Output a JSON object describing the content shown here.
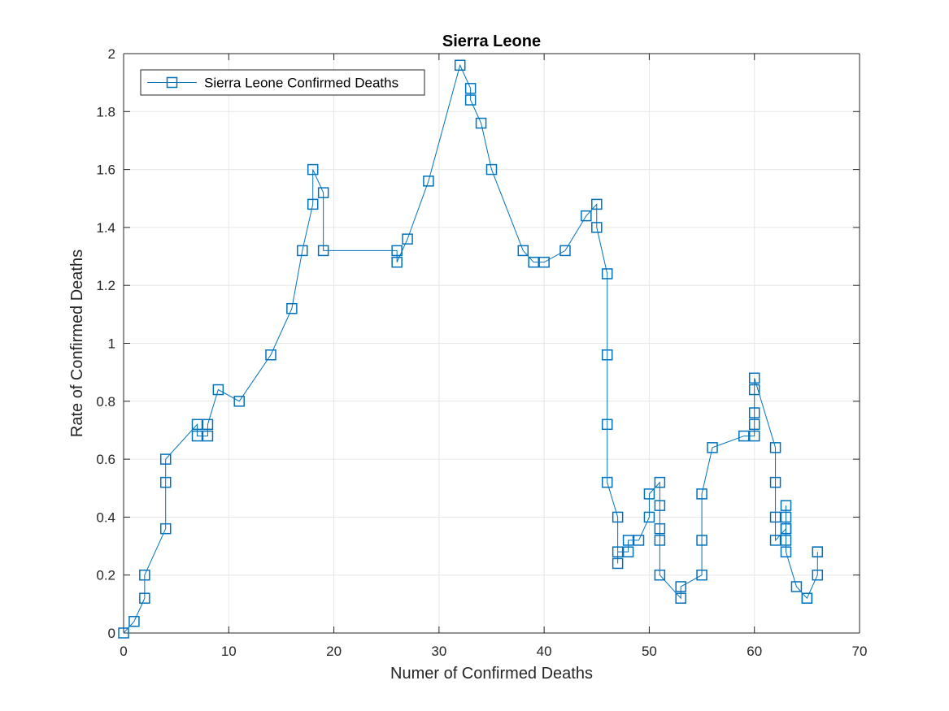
{
  "chart_data": {
    "type": "line",
    "title": "Sierra Leone",
    "xlabel": "Numer of Confirmed Deaths",
    "ylabel": "Rate of Confirmed Deaths",
    "xlim": [
      0,
      70
    ],
    "ylim": [
      0,
      2
    ],
    "xticks": [
      0,
      10,
      20,
      30,
      40,
      50,
      60,
      70
    ],
    "yticks": [
      0,
      0.2,
      0.4,
      0.6,
      0.8,
      1,
      1.2,
      1.4,
      1.6,
      1.8,
      2
    ],
    "xtick_labels": [
      "0",
      "10",
      "20",
      "30",
      "40",
      "50",
      "60",
      "70"
    ],
    "ytick_labels": [
      "0",
      "0.2",
      "0.4",
      "0.6",
      "0.8",
      "1",
      "1.2",
      "1.4",
      "1.6",
      "1.8",
      "2"
    ],
    "grid": true,
    "legend": {
      "position": "top-left",
      "entries": [
        "Sierra Leone Confirmed Deaths"
      ]
    },
    "colors": {
      "series": "#0072BD",
      "grid": "#e6e6e6",
      "axis": "#262626"
    },
    "series": [
      {
        "name": "Sierra Leone Confirmed Deaths",
        "marker": "square",
        "x": [
          0,
          1,
          2,
          2,
          4,
          4,
          4,
          7,
          7,
          8,
          8,
          9,
          11,
          14,
          16,
          17,
          18,
          18,
          19,
          19,
          26,
          26,
          27,
          29,
          32,
          33,
          33,
          34,
          35,
          38,
          39,
          40,
          42,
          44,
          45,
          45,
          46,
          46,
          46,
          46,
          47,
          47,
          47,
          48,
          48,
          49,
          50,
          50,
          51,
          51,
          51,
          51,
          51,
          53,
          53,
          55,
          55,
          55,
          56,
          59,
          60,
          60,
          60,
          60,
          60,
          62,
          62,
          62,
          62,
          63,
          63,
          63,
          63,
          63,
          63,
          64,
          65,
          65,
          66,
          66,
          66
        ],
        "y": [
          0,
          0.04,
          0.12,
          0.2,
          0.36,
          0.52,
          0.6,
          0.72,
          0.68,
          0.68,
          0.72,
          0.84,
          0.8,
          0.96,
          1.12,
          1.32,
          1.48,
          1.6,
          1.52,
          1.32,
          1.32,
          1.28,
          1.36,
          1.56,
          1.96,
          1.88,
          1.84,
          1.76,
          1.6,
          1.32,
          1.28,
          1.28,
          1.32,
          1.44,
          1.48,
          1.4,
          1.24,
          0.96,
          0.72,
          0.52,
          0.4,
          0.24,
          0.28,
          0.28,
          0.32,
          0.32,
          0.4,
          0.48,
          0.52,
          0.44,
          0.36,
          0.32,
          0.2,
          0.12,
          0.16,
          0.2,
          0.32,
          0.48,
          0.64,
          0.68,
          0.68,
          0.72,
          0.76,
          0.84,
          0.88,
          0.64,
          0.52,
          0.4,
          0.32,
          0.36,
          0.4,
          0.44,
          0.36,
          0.32,
          0.28,
          0.16,
          0.12,
          0.12,
          0.2,
          0.28,
          0.28
        ]
      }
    ]
  }
}
